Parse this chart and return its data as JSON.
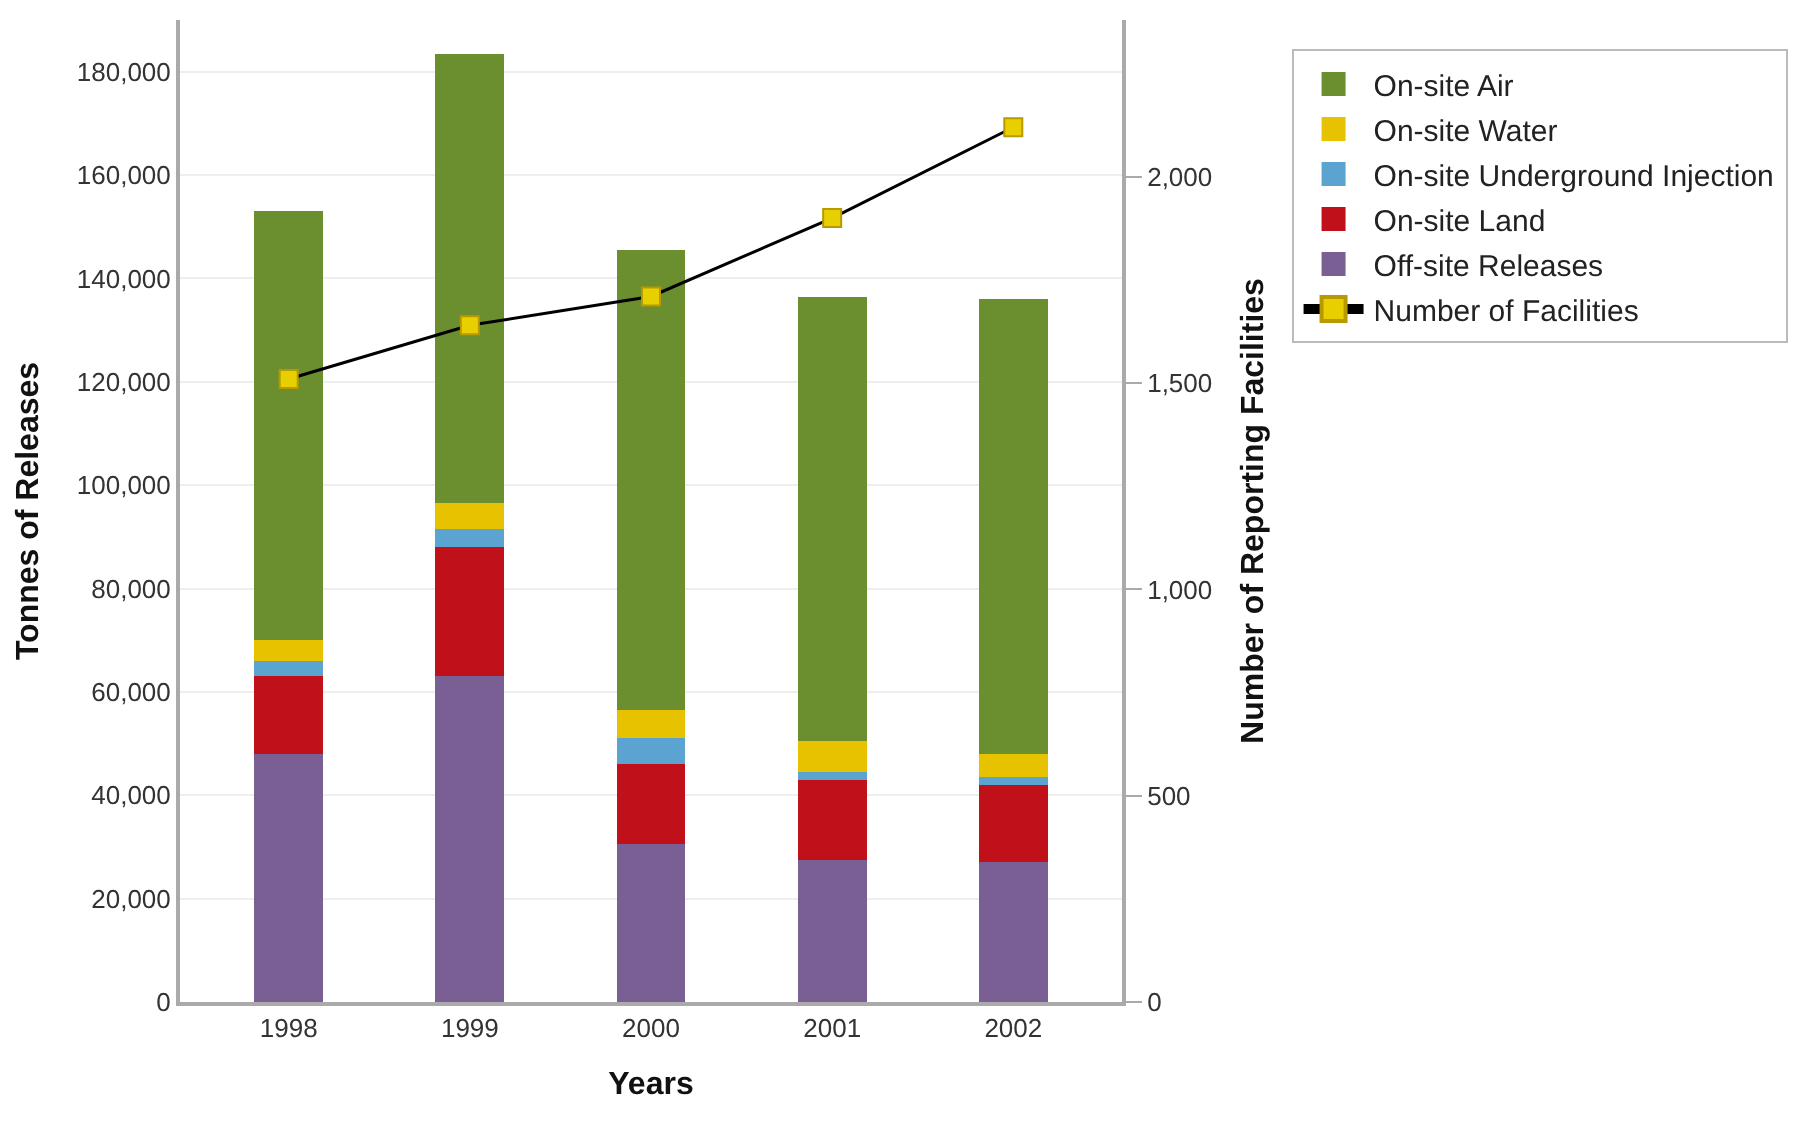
{
  "chart_data": {
    "type": "bar",
    "stacked": true,
    "xlabel": "Years",
    "ylabel": "Tonnes of Releases",
    "y2label": "Number of Reporting Facilities",
    "categories": [
      "1998",
      "1999",
      "2000",
      "2001",
      "2002"
    ],
    "series": [
      {
        "name": "Off-site Releases",
        "color": "#7a5f94",
        "values": [
          48000,
          63000,
          30500,
          27500,
          27000
        ]
      },
      {
        "name": "On-site Land",
        "color": "#c0101a",
        "values": [
          15000,
          25000,
          15500,
          15500,
          15000
        ]
      },
      {
        "name": "On-site Underground Injection",
        "color": "#5ba3d0",
        "values": [
          3000,
          3500,
          5000,
          1500,
          1500
        ]
      },
      {
        "name": "On-site Water",
        "color": "#e6c200",
        "values": [
          4000,
          5000,
          5500,
          6000,
          4500
        ]
      },
      {
        "name": "On-site Air",
        "color": "#6b8e2e",
        "values": [
          83000,
          87000,
          89000,
          86000,
          88000
        ]
      },
      {
        "name": "Number of Facilities",
        "type": "line",
        "axis": "y2",
        "color": "#e8d000",
        "marker": "square",
        "values": [
          1510,
          1640,
          1710,
          1900,
          2120
        ]
      }
    ],
    "ylim": [
      0,
      190000
    ],
    "yticks": [
      {
        "value": 0,
        "label": "0"
      },
      {
        "value": 20000,
        "label": "20,000"
      },
      {
        "value": 40000,
        "label": "40,000"
      },
      {
        "value": 60000,
        "label": "60,000"
      },
      {
        "value": 80000,
        "label": "80,000"
      },
      {
        "value": 100000,
        "label": "100,000"
      },
      {
        "value": 120000,
        "label": "120,000"
      },
      {
        "value": 140000,
        "label": "140,000"
      },
      {
        "value": 160000,
        "label": "160,000"
      },
      {
        "value": 180000,
        "label": "180,000"
      }
    ],
    "y2lim": [
      0,
      2380
    ],
    "y2ticks": [
      0,
      500,
      {
        "value": 1000,
        "label": "1,000"
      },
      {
        "value": 1500,
        "label": "1,500"
      },
      {
        "value": 2000,
        "label": "2,000"
      }
    ],
    "grid": "y",
    "legend": "right"
  }
}
